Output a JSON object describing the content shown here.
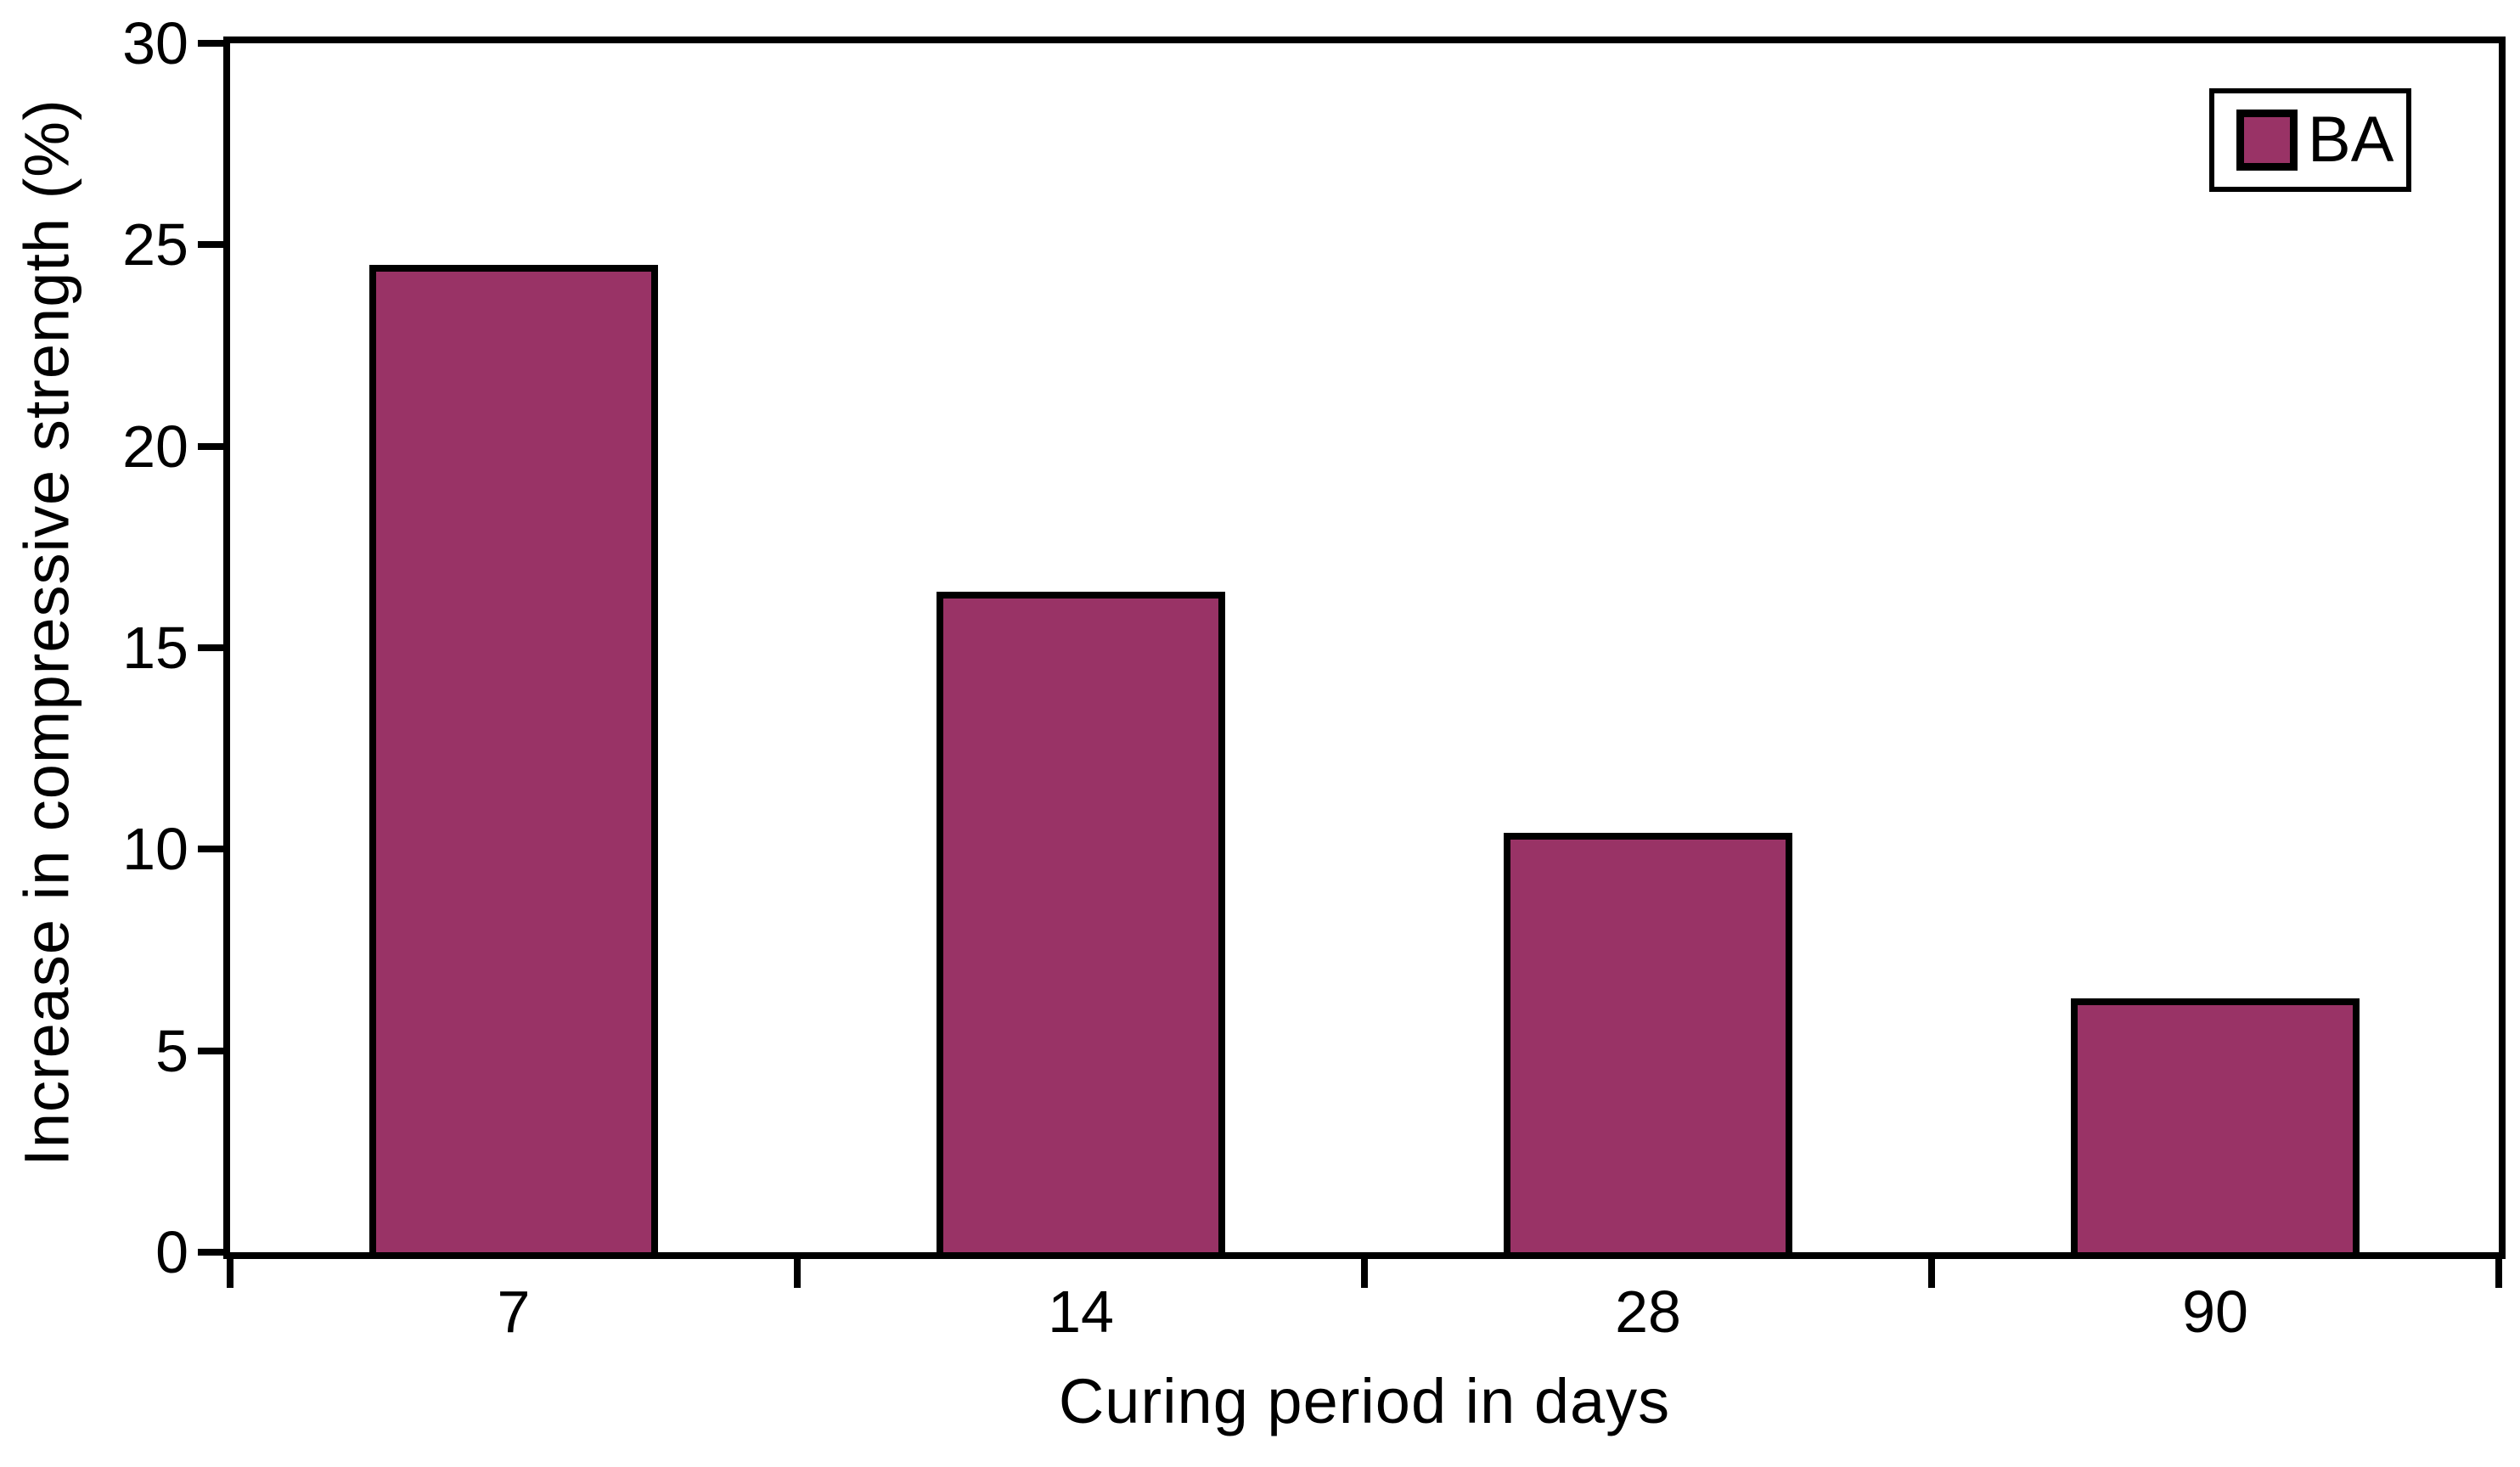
{
  "chart_data": {
    "type": "bar",
    "title": "",
    "categories": [
      "7",
      "14",
      "28",
      "90"
    ],
    "series": [
      {
        "name": "BA",
        "values": [
          24.5,
          16.4,
          10.4,
          6.3
        ]
      }
    ],
    "xlabel": "Curing period in days",
    "ylabel": "Increase in compressive strength (%)",
    "ylim": [
      0,
      30
    ],
    "yticks": [
      0,
      5,
      10,
      15,
      20,
      25,
      30
    ],
    "grid": false,
    "legend": {
      "position": "top-right",
      "entries": [
        "BA"
      ]
    },
    "colors": {
      "bar_fill": "#993366",
      "bar_border": "#000000",
      "axis": "#000000",
      "text": "#000000",
      "background": "#ffffff"
    },
    "bar_width_fraction": 0.51
  }
}
